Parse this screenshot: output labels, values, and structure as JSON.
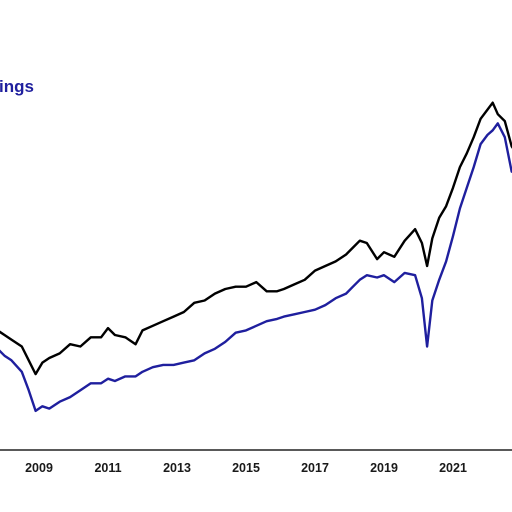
{
  "chart_data": {
    "type": "line",
    "x_ticks": [
      "2009",
      "2011",
      "2013",
      "2015",
      "2017",
      "2019",
      "2021",
      "20"
    ],
    "legend": {
      "visible_text": "ings"
    },
    "grid": false,
    "series": [
      {
        "color": "#000000",
        "x": [
          2007.8,
          2008.0,
          2008.2,
          2008.5,
          2008.7,
          2008.9,
          2009.1,
          2009.3,
          2009.6,
          2009.9,
          2010.2,
          2010.5,
          2010.8,
          2011.0,
          2011.2,
          2011.5,
          2011.8,
          2012.0,
          2012.3,
          2012.6,
          2012.9,
          2013.2,
          2013.5,
          2013.8,
          2014.1,
          2014.4,
          2014.7,
          2015.0,
          2015.3,
          2015.6,
          2015.9,
          2016.1,
          2016.4,
          2016.7,
          2017.0,
          2017.3,
          2017.6,
          2017.9,
          2018.1,
          2018.3,
          2018.5,
          2018.8,
          2019.0,
          2019.3,
          2019.6,
          2019.9,
          2020.1,
          2020.25,
          2020.4,
          2020.6,
          2020.8,
          2021.0,
          2021.2,
          2021.4,
          2021.6,
          2021.8,
          2022.0,
          2022.15,
          2022.3,
          2022.5,
          2022.7,
          2022.85
        ],
        "values": [
          5.2,
          5.0,
          4.8,
          4.5,
          3.9,
          3.3,
          3.8,
          4.0,
          4.2,
          4.6,
          4.5,
          4.9,
          4.9,
          5.3,
          5.0,
          4.9,
          4.6,
          5.2,
          5.4,
          5.6,
          5.8,
          6.0,
          6.4,
          6.5,
          6.8,
          7.0,
          7.1,
          7.1,
          7.3,
          6.9,
          6.9,
          7.0,
          7.2,
          7.4,
          7.8,
          8.0,
          8.2,
          8.5,
          8.8,
          9.1,
          9.0,
          8.3,
          8.6,
          8.4,
          9.1,
          9.6,
          9.0,
          8.0,
          9.2,
          10.1,
          10.6,
          11.4,
          12.3,
          12.9,
          13.6,
          14.4,
          14.8,
          15.1,
          14.6,
          14.3,
          13.2,
          12.9
        ]
      },
      {
        "color": "#1f1f9e",
        "x": [
          2007.8,
          2008.0,
          2008.2,
          2008.5,
          2008.7,
          2008.9,
          2009.1,
          2009.3,
          2009.6,
          2009.9,
          2010.2,
          2010.5,
          2010.8,
          2011.0,
          2011.2,
          2011.5,
          2011.8,
          2012.0,
          2012.3,
          2012.6,
          2012.9,
          2013.2,
          2013.5,
          2013.8,
          2014.1,
          2014.4,
          2014.7,
          2015.0,
          2015.3,
          2015.6,
          2015.9,
          2016.1,
          2016.4,
          2016.7,
          2017.0,
          2017.3,
          2017.6,
          2017.9,
          2018.1,
          2018.3,
          2018.5,
          2018.8,
          2019.0,
          2019.3,
          2019.6,
          2019.9,
          2020.1,
          2020.25,
          2020.4,
          2020.6,
          2020.8,
          2021.0,
          2021.2,
          2021.4,
          2021.6,
          2021.8,
          2022.0,
          2022.15,
          2022.3,
          2022.5,
          2022.7,
          2022.85
        ],
        "values": [
          4.4,
          4.1,
          3.9,
          3.4,
          2.6,
          1.7,
          1.9,
          1.8,
          2.1,
          2.3,
          2.6,
          2.9,
          2.9,
          3.1,
          3.0,
          3.2,
          3.2,
          3.4,
          3.6,
          3.7,
          3.7,
          3.8,
          3.9,
          4.2,
          4.4,
          4.7,
          5.1,
          5.2,
          5.4,
          5.6,
          5.7,
          5.8,
          5.9,
          6.0,
          6.1,
          6.3,
          6.6,
          6.8,
          7.1,
          7.4,
          7.6,
          7.5,
          7.6,
          7.3,
          7.7,
          7.6,
          6.6,
          4.5,
          6.5,
          7.4,
          8.2,
          9.3,
          10.5,
          11.4,
          12.3,
          13.3,
          13.7,
          13.9,
          14.2,
          13.6,
          12.1,
          12.7
        ]
      }
    ]
  }
}
